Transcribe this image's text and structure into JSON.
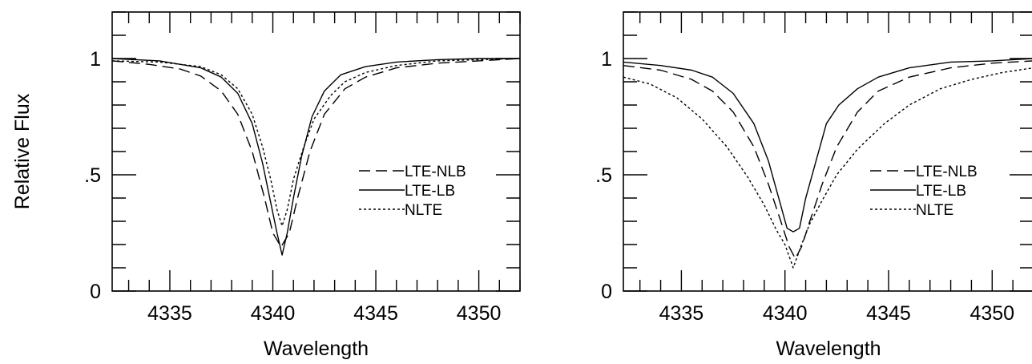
{
  "chart_data": [
    {
      "type": "line",
      "xlabel": "Wavelength",
      "ylabel": "Relative Flux",
      "xlim": [
        4332.2,
        4352.0
      ],
      "ylim": [
        0,
        1.2
      ],
      "xticks": [
        4335,
        4340,
        4345,
        4350
      ],
      "yticks": [
        0,
        0.5,
        1
      ],
      "ytick_labels": [
        "0",
        ".5",
        "1"
      ],
      "legend_placement": "center-right",
      "series": [
        {
          "name": "LTE-NLB",
          "style": "dashed",
          "x": [
            4332.2,
            4334.0,
            4335.5,
            4336.5,
            4337.5,
            4338.3,
            4339.0,
            4339.6,
            4340.0,
            4340.4,
            4340.8,
            4341.2,
            4341.8,
            4342.5,
            4343.5,
            4344.5,
            4346.0,
            4348.0,
            4350.0,
            4352.0
          ],
          "y": [
            0.99,
            0.975,
            0.955,
            0.925,
            0.86,
            0.76,
            0.6,
            0.4,
            0.25,
            0.19,
            0.25,
            0.4,
            0.6,
            0.76,
            0.87,
            0.92,
            0.96,
            0.98,
            0.99,
            1.0
          ]
        },
        {
          "name": "LTE-LB",
          "style": "solid",
          "x": [
            4332.2,
            4334.5,
            4336.5,
            4337.5,
            4338.3,
            4339.0,
            4339.5,
            4339.9,
            4340.2,
            4340.45,
            4340.7,
            4341.0,
            4341.4,
            4341.9,
            4342.5,
            4343.3,
            4344.5,
            4346.0,
            4348.0,
            4350.0,
            4352.0
          ],
          "y": [
            1.0,
            0.99,
            0.96,
            0.92,
            0.85,
            0.72,
            0.55,
            0.38,
            0.25,
            0.155,
            0.25,
            0.4,
            0.58,
            0.75,
            0.86,
            0.93,
            0.965,
            0.985,
            0.995,
            1.0,
            1.0
          ]
        },
        {
          "name": "NLTE",
          "style": "dotted",
          "x": [
            4332.2,
            4334.5,
            4336.5,
            4337.5,
            4338.3,
            4339.0,
            4339.5,
            4339.9,
            4340.2,
            4340.45,
            4340.7,
            4341.0,
            4341.5,
            4342.0,
            4342.8,
            4343.5,
            4344.5,
            4346.0,
            4348.0,
            4350.0,
            4352.0
          ],
          "y": [
            0.99,
            0.985,
            0.965,
            0.93,
            0.87,
            0.76,
            0.62,
            0.48,
            0.35,
            0.28,
            0.35,
            0.48,
            0.62,
            0.74,
            0.84,
            0.9,
            0.94,
            0.97,
            0.99,
            0.995,
            1.0
          ]
        }
      ]
    },
    {
      "type": "line",
      "xlabel": "Wavelength",
      "ylabel": "",
      "xlim": [
        4332.2,
        4352.0
      ],
      "ylim": [
        0,
        1.2
      ],
      "xticks": [
        4335,
        4340,
        4345,
        4350
      ],
      "yticks": [
        0,
        0.5,
        1
      ],
      "ytick_labels": [
        "0",
        ".5",
        "1"
      ],
      "legend_placement": "center-right",
      "series": [
        {
          "name": "LTE-NLB",
          "style": "dashed",
          "x": [
            4332.2,
            4334.0,
            4335.5,
            4336.5,
            4337.5,
            4338.5,
            4339.2,
            4339.8,
            4340.2,
            4340.5,
            4340.8,
            4341.2,
            4341.8,
            4342.5,
            4343.5,
            4344.5,
            4346.0,
            4348.0,
            4350.0,
            4352.0
          ],
          "y": [
            0.97,
            0.95,
            0.91,
            0.86,
            0.77,
            0.62,
            0.46,
            0.3,
            0.19,
            0.14,
            0.19,
            0.3,
            0.46,
            0.62,
            0.77,
            0.86,
            0.92,
            0.96,
            0.98,
            0.99
          ]
        },
        {
          "name": "LTE-LB",
          "style": "solid",
          "x": [
            4332.2,
            4334.0,
            4335.5,
            4336.5,
            4337.5,
            4338.5,
            4339.2,
            4339.7,
            4340.1,
            4340.4,
            4340.7,
            4341.0,
            4341.5,
            4342.0,
            4342.6,
            4343.5,
            4344.5,
            4346.0,
            4348.0,
            4350.0,
            4352.0
          ],
          "y": [
            0.985,
            0.97,
            0.95,
            0.92,
            0.85,
            0.72,
            0.56,
            0.4,
            0.27,
            0.255,
            0.27,
            0.4,
            0.56,
            0.72,
            0.8,
            0.87,
            0.92,
            0.96,
            0.985,
            0.99,
            1.0
          ]
        },
        {
          "name": "NLTE",
          "style": "dotted",
          "x": [
            4332.2,
            4333.5,
            4334.8,
            4336.0,
            4337.2,
            4338.2,
            4339.0,
            4339.6,
            4340.0,
            4340.4,
            4340.8,
            4341.2,
            4341.8,
            4342.5,
            4343.5,
            4344.8,
            4346.0,
            4347.5,
            4349.0,
            4350.5,
            4352.0
          ],
          "y": [
            0.92,
            0.89,
            0.83,
            0.74,
            0.62,
            0.49,
            0.37,
            0.26,
            0.2,
            0.1,
            0.2,
            0.29,
            0.39,
            0.5,
            0.61,
            0.72,
            0.8,
            0.87,
            0.91,
            0.94,
            0.96
          ]
        }
      ]
    }
  ]
}
